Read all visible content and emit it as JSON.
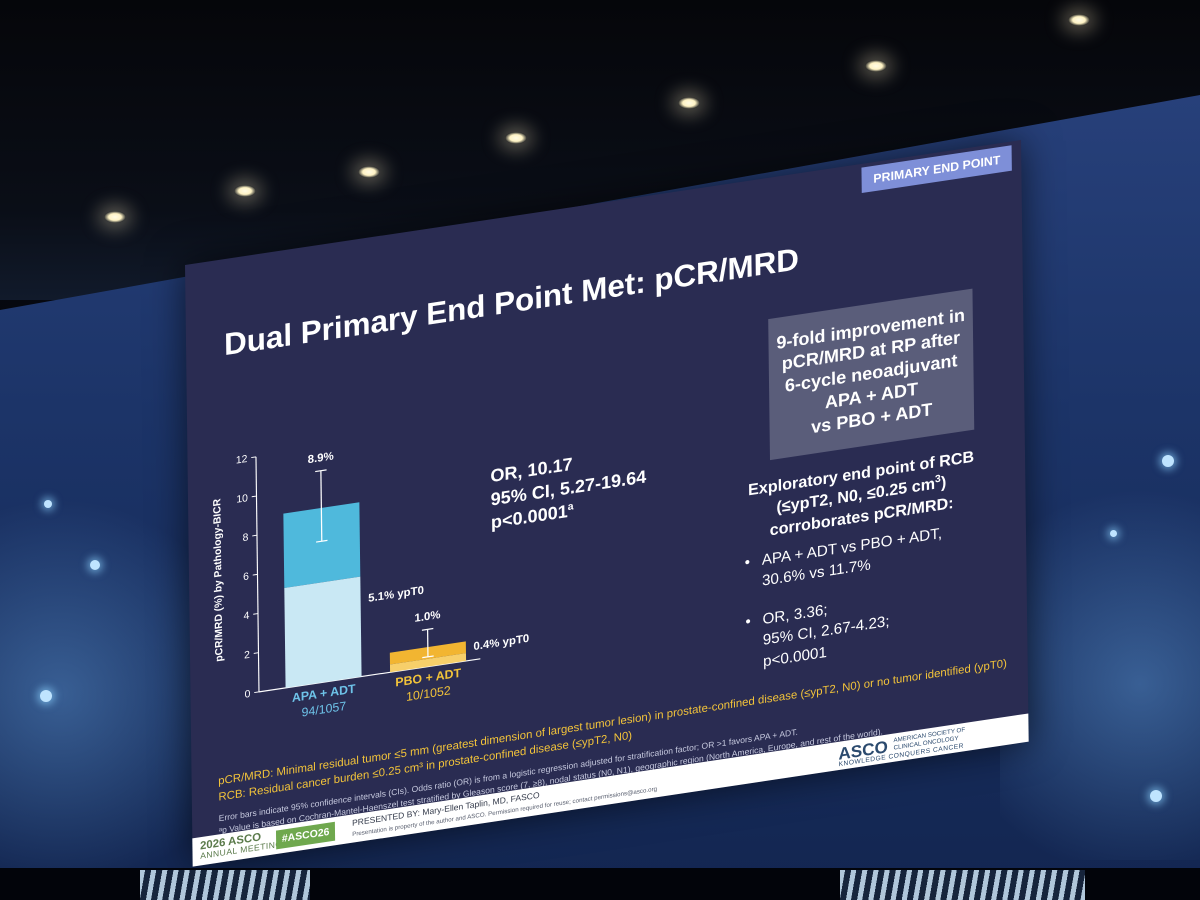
{
  "slide": {
    "badge": "PRIMARY END POINT",
    "title": "Dual Primary End Point Met: pCR/MRD",
    "stats": {
      "or": "OR, 10.17",
      "ci": "95% CI, 5.27-19.64",
      "p": "p<0.0001",
      "p_sup": "a"
    },
    "callout": [
      "9-fold improvement in",
      "pCR/MRD at RP after",
      "6-cycle neoadjuvant",
      "APA + ADT",
      "vs PBO + ADT"
    ],
    "exploratory": {
      "line1": "Exploratory end point of RCB",
      "line2_pre": "(≤ypT2, N0, ≤0.25 cm",
      "line2_sup": "3",
      "line2_post": ")",
      "line3": "corroborates pCR/MRD:"
    },
    "bullets": [
      [
        "APA + ADT vs PBO + ADT,",
        "30.6% vs 11.7%"
      ],
      [
        "OR, 3.36;",
        "95% CI, 2.67-4.23;",
        "p<0.0001"
      ]
    ],
    "definitions": [
      "pCR/MRD: Minimal residual tumor ≤5 mm (greatest dimension of largest tumor lesion) in prostate-confined disease (≤ypT2, N0) or no tumor identified (ypT0)",
      "RCB: Residual cancer burden ≤0.25 cm³ in prostate-confined disease (≤ypT2, N0)"
    ],
    "footnotes": [
      "Error bars indicate 95% confidence intervals (CIs). Odds ratio (OR) is from a logistic regression adjusted for stratification factor; OR >1 favors APA + ADT.",
      "ᵃp Value is based on Cochran-Mantel-Haenszel test stratified by Gleason score (7, ≥8), nodal status (N0, N1), geographic region (North America, Europe, and rest of the world)."
    ],
    "footer": {
      "meeting_year": "2026 ASCO",
      "meeting_sub": "ANNUAL MEETING",
      "hashtag": "#ASCO26",
      "presenter_label": "PRESENTED BY:",
      "presenter": "Mary-Ellen Taplin, MD, FASCO",
      "note": "Presentation is property of the author and ASCO. Permission required for reuse; contact permissions@asco.org",
      "asco": "ASCO",
      "asco_sub": [
        "AMERICAN SOCIETY OF",
        "CLINICAL ONCOLOGY"
      ],
      "asco_tag": "KNOWLEDGE CONQUERS CANCER"
    }
  },
  "chart_data": {
    "type": "bar",
    "ylabel": "pCR/MRD (%) by Pathology-BICR",
    "ylim": [
      0,
      12
    ],
    "yticks": [
      0,
      2,
      4,
      6,
      8,
      10,
      12
    ],
    "categories": [
      "APA + ADT",
      "PBO + ADT"
    ],
    "category_sublabels": [
      "94/1057",
      "10/1052"
    ],
    "totals": [
      8.9,
      1.0
    ],
    "total_labels": [
      "8.9%",
      "1.0%"
    ],
    "ypt0": [
      5.1,
      0.4
    ],
    "ypt0_labels": [
      "5.1% ypT0",
      "0.4% ypT0"
    ],
    "ci": [
      [
        7.2,
        10.8
      ],
      [
        0.5,
        1.9
      ]
    ],
    "colors": {
      "apa_total": "#4fb9dc",
      "apa_ypt0": "#c9e8f4",
      "pbo_total": "#f2b531",
      "pbo_ypt0": "#f7cf6a",
      "apa_label": "#6ec3e9",
      "pbo_label": "#f2c33a"
    }
  }
}
